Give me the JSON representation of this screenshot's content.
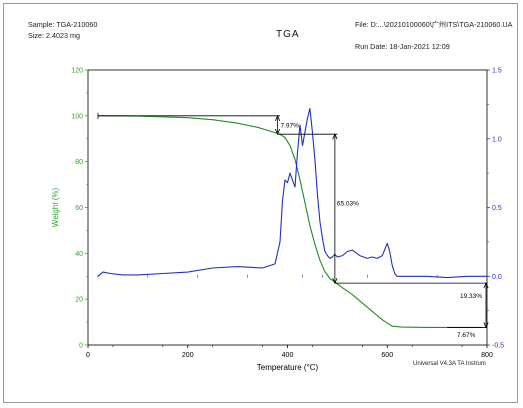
{
  "header": {
    "sample": "Sample: TGA-210060",
    "size": "Size:  2.4023 mg",
    "title": "TGA",
    "file": "File: D:...\\20210100060\\广州ITS\\TGA-210060.UA",
    "run_date": "Run Date: 18-Jan-2021 12:09"
  },
  "footer": "Universal V4.3A TA Instrum",
  "colors": {
    "weight": "#228B22",
    "deriv": "#2030C0",
    "axis_left": "#33A033",
    "axis_right": "#3030C0",
    "annotation": "#000000"
  },
  "chart_data": {
    "type": "line",
    "title": "TGA",
    "xlabel": "Temperature (°C)",
    "ylabel_left": "Weight (%)",
    "xlim": [
      0,
      800
    ],
    "ylim_left": [
      0,
      120
    ],
    "ylim_right": [
      -0.5,
      1.5
    ],
    "x_ticks": [
      "0",
      "200",
      "400",
      "600",
      "800"
    ],
    "y_left_ticks": [
      "0",
      "20",
      "40",
      "60",
      "80",
      "100",
      "120"
    ],
    "y_right_ticks": [
      "-0.5",
      "0.0",
      "0.5",
      "1.0",
      "1.5"
    ],
    "grid": false,
    "series": [
      {
        "axis": "left",
        "x": [
          20,
          50,
          100,
          150,
          200,
          250,
          300,
          340,
          370,
          385,
          395,
          405,
          415,
          425,
          435,
          445,
          455,
          465,
          475,
          485,
          495,
          510,
          530,
          560,
          590,
          610,
          630,
          680,
          740,
          790
        ],
        "y": [
          100,
          100,
          99.9,
          99.6,
          99.2,
          98.3,
          96.8,
          95.0,
          93.0,
          92.0,
          90.5,
          87.0,
          81.0,
          72.0,
          62.0,
          52.0,
          44.0,
          37.0,
          32.0,
          29.0,
          27.5,
          25.0,
          22.0,
          16.5,
          11.0,
          8.2,
          7.8,
          7.7,
          7.7,
          7.67
        ]
      },
      {
        "axis": "right",
        "x": [
          20,
          30,
          45,
          70,
          100,
          150,
          200,
          250,
          300,
          350,
          375,
          385,
          390,
          395,
          400,
          405,
          410,
          415,
          420,
          425,
          430,
          435,
          440,
          445,
          450,
          455,
          460,
          465,
          470,
          475,
          480,
          485,
          490,
          495,
          500,
          510,
          520,
          530,
          545,
          560,
          570,
          580,
          590,
          600,
          605,
          610,
          615,
          620,
          640,
          680,
          720,
          760,
          800
        ],
        "y": [
          0.0,
          0.03,
          0.02,
          0.01,
          0.01,
          0.02,
          0.03,
          0.06,
          0.07,
          0.06,
          0.09,
          0.25,
          0.55,
          0.7,
          0.68,
          0.75,
          0.7,
          0.65,
          0.9,
          1.1,
          0.95,
          1.05,
          1.15,
          1.22,
          1.05,
          0.85,
          0.6,
          0.4,
          0.28,
          0.18,
          0.15,
          0.13,
          0.14,
          0.16,
          0.14,
          0.15,
          0.18,
          0.19,
          0.15,
          0.13,
          0.14,
          0.13,
          0.15,
          0.24,
          0.18,
          0.08,
          0.02,
          0.0,
          0.0,
          0.0,
          -0.01,
          0.0,
          0.0
        ]
      }
    ],
    "annotations": [
      {
        "label": "7.97%",
        "from_y": 100,
        "to_y": 92.03,
        "x": 380
      },
      {
        "label": "65.03%",
        "from_y": 92.0,
        "to_y": 27.0,
        "x": 495
      },
      {
        "label": "19.33%",
        "from_y": 27.0,
        "to_y": 7.67,
        "x": 800
      },
      {
        "label": "7.67%",
        "at_y": 7.67,
        "x": 800
      }
    ]
  }
}
